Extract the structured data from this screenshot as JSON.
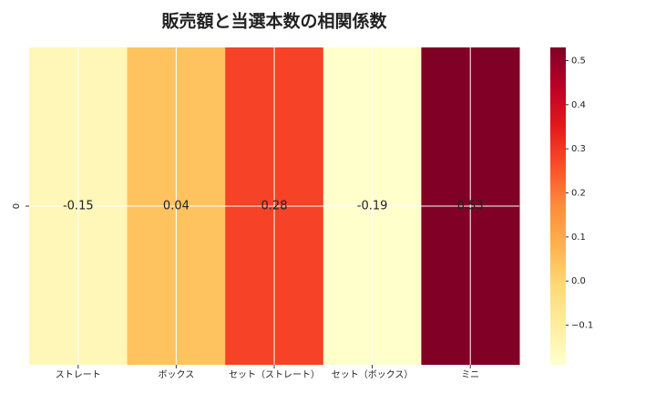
{
  "chart_data": {
    "type": "heatmap",
    "title": "販売額と当選本数の相関係数",
    "categories": [
      "ストレート",
      "ボックス",
      "セット（ストレート）",
      "セット（ボックス）",
      "ミニ"
    ],
    "row_labels": [
      "0"
    ],
    "values": [
      -0.15,
      0.04,
      0.28,
      -0.19,
      0.53
    ],
    "colormap": [
      "#ffffcc",
      "#ffeda0",
      "#fed976",
      "#feb24c",
      "#fd8d3c",
      "#fc4e2a",
      "#e31a1c",
      "#bd0026",
      "#800026"
    ],
    "clim": [
      -0.19,
      0.53
    ],
    "cticks": [
      {
        "value": -0.1,
        "label": "−0.1"
      },
      {
        "value": 0,
        "label": "0.0"
      },
      0.1,
      0.2,
      0.3,
      0.4,
      0.5
    ]
  }
}
